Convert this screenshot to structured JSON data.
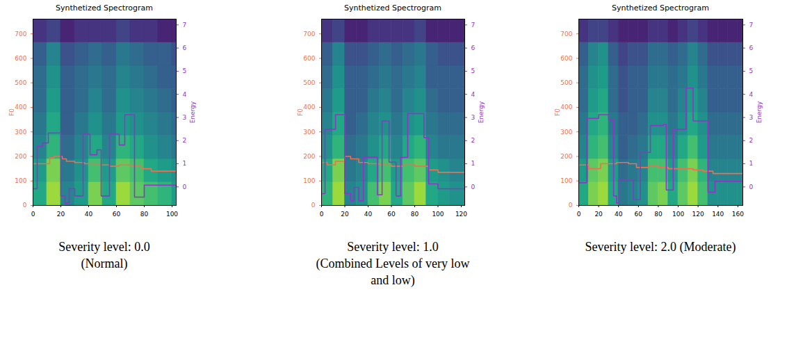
{
  "chart_data": [
    {
      "type": "line",
      "title": "Synthetized Spectrogram",
      "caption": [
        "Severity level: 0.0",
        "(Normal)"
      ],
      "ylabel": "F0",
      "y2label": "Energy",
      "xlim": [
        0,
        103
      ],
      "xticks": [
        0,
        20,
        40,
        60,
        80,
        100
      ],
      "ylim": [
        0,
        760
      ],
      "yticks": [
        0,
        100,
        200,
        300,
        400,
        500,
        600,
        700
      ],
      "y2lim": [
        -0.8,
        7.25
      ],
      "y2ticks": [
        0,
        1,
        2,
        3,
        4,
        5,
        6,
        7
      ],
      "spectrogram": {
        "color": "viridis",
        "value_range": [
          0,
          1
        ],
        "x_edges": [
          0,
          10,
          20,
          30,
          40,
          50,
          60,
          70,
          80,
          90,
          100,
          103
        ],
        "y_edges": [
          0,
          95,
          190,
          285,
          380,
          475,
          570,
          665,
          760
        ],
        "values": [
          [
            0.6,
            0.85,
            0.45,
            0.55,
            0.8,
            0.6,
            0.85,
            0.75,
            0.7,
            0.65,
            0.55
          ],
          [
            0.55,
            0.8,
            0.4,
            0.5,
            0.7,
            0.55,
            0.75,
            0.7,
            0.6,
            0.55,
            0.5
          ],
          [
            0.45,
            0.65,
            0.35,
            0.45,
            0.6,
            0.45,
            0.65,
            0.6,
            0.5,
            0.45,
            0.4
          ],
          [
            0.4,
            0.6,
            0.3,
            0.4,
            0.5,
            0.4,
            0.55,
            0.5,
            0.45,
            0.4,
            0.35
          ],
          [
            0.35,
            0.55,
            0.3,
            0.35,
            0.45,
            0.35,
            0.5,
            0.45,
            0.4,
            0.35,
            0.3
          ],
          [
            0.35,
            0.5,
            0.3,
            0.35,
            0.4,
            0.35,
            0.45,
            0.4,
            0.35,
            0.3,
            0.3
          ],
          [
            0.3,
            0.45,
            0.25,
            0.3,
            0.35,
            0.3,
            0.4,
            0.35,
            0.3,
            0.3,
            0.25
          ],
          [
            0.15,
            0.2,
            0.1,
            0.15,
            0.15,
            0.15,
            0.2,
            0.15,
            0.15,
            0.1,
            0.1
          ]
        ]
      },
      "series": [
        {
          "name": "F0",
          "color": "#ef6f50",
          "line_style": "step",
          "x": [
            0,
            12,
            15,
            21,
            24,
            30,
            37,
            45,
            55,
            62,
            70,
            78,
            85,
            103
          ],
          "values": [
            170,
            195,
            200,
            190,
            180,
            175,
            170,
            165,
            160,
            165,
            160,
            150,
            140,
            140
          ]
        },
        {
          "name": "Energy",
          "color": "#9035c8",
          "line_style": "step",
          "axis": "y2",
          "x": [
            0,
            3,
            7,
            11,
            20,
            23,
            26,
            30,
            36,
            41,
            46,
            49,
            55,
            62,
            66,
            73,
            80,
            103
          ],
          "values": [
            -0.08,
            1.75,
            1.9,
            2.33,
            -0.39,
            -0.7,
            -0.08,
            -0.39,
            2.28,
            1.39,
            1.6,
            -0.39,
            2.28,
            1.81,
            3.12,
            -0.44,
            0.08,
            0.08
          ]
        }
      ]
    },
    {
      "type": "line",
      "title": "Synthetized Spectrogram",
      "caption": [
        "Severity level: 1.0",
        "(Combined Levels of very low",
        "and low)"
      ],
      "ylabel": "F0",
      "y2label": "Energy",
      "xlim": [
        0,
        123
      ],
      "xticks": [
        0,
        20,
        40,
        60,
        80,
        100,
        120
      ],
      "ylim": [
        0,
        760
      ],
      "yticks": [
        0,
        100,
        200,
        300,
        400,
        500,
        600,
        700
      ],
      "y2lim": [
        -0.8,
        7.25
      ],
      "y2ticks": [
        0,
        1,
        2,
        3,
        4,
        5,
        6,
        7
      ],
      "spectrogram": {
        "color": "viridis",
        "value_range": [
          0,
          1
        ],
        "x_edges": [
          0,
          10,
          20,
          30,
          40,
          50,
          60,
          70,
          80,
          90,
          100,
          110,
          120,
          123
        ],
        "y_edges": [
          0,
          95,
          190,
          285,
          380,
          475,
          570,
          665,
          760
        ],
        "values": [
          [
            0.65,
            0.85,
            0.45,
            0.5,
            0.7,
            0.8,
            0.6,
            0.75,
            0.85,
            0.6,
            0.55,
            0.5,
            0.5
          ],
          [
            0.6,
            0.8,
            0.4,
            0.45,
            0.6,
            0.7,
            0.55,
            0.7,
            0.75,
            0.55,
            0.5,
            0.45,
            0.45
          ],
          [
            0.5,
            0.65,
            0.35,
            0.4,
            0.5,
            0.6,
            0.45,
            0.6,
            0.65,
            0.45,
            0.4,
            0.4,
            0.4
          ],
          [
            0.45,
            0.6,
            0.3,
            0.35,
            0.45,
            0.5,
            0.4,
            0.5,
            0.55,
            0.4,
            0.35,
            0.35,
            0.35
          ],
          [
            0.4,
            0.55,
            0.3,
            0.3,
            0.4,
            0.45,
            0.35,
            0.45,
            0.5,
            0.35,
            0.3,
            0.3,
            0.3
          ],
          [
            0.35,
            0.5,
            0.3,
            0.3,
            0.35,
            0.4,
            0.35,
            0.4,
            0.45,
            0.3,
            0.3,
            0.3,
            0.3
          ],
          [
            0.3,
            0.45,
            0.25,
            0.25,
            0.3,
            0.35,
            0.3,
            0.35,
            0.4,
            0.3,
            0.25,
            0.25,
            0.25
          ],
          [
            0.15,
            0.2,
            0.1,
            0.1,
            0.15,
            0.15,
            0.15,
            0.15,
            0.2,
            0.1,
            0.1,
            0.1,
            0.1
          ]
        ]
      },
      "series": [
        {
          "name": "F0",
          "color": "#ef6f50",
          "line_style": "step",
          "x": [
            0,
            5,
            12,
            20,
            25,
            32,
            40,
            50,
            60,
            70,
            80,
            92,
            100,
            123
          ],
          "values": [
            175,
            165,
            180,
            200,
            190,
            175,
            170,
            165,
            160,
            165,
            160,
            145,
            135,
            135
          ]
        },
        {
          "name": "Energy",
          "color": "#9035c8",
          "line_style": "step",
          "axis": "y2",
          "x": [
            0,
            3,
            12,
            20,
            25,
            28,
            32,
            36,
            48,
            52,
            58,
            64,
            68,
            74,
            88,
            92,
            100,
            123
          ],
          "values": [
            -0.29,
            2.49,
            3.12,
            -0.29,
            -0.6,
            -0.02,
            -0.6,
            1.28,
            -0.34,
            2.85,
            1.07,
            -0.39,
            1.28,
            3.17,
            2.12,
            0.13,
            -0.08,
            -0.08
          ]
        }
      ]
    },
    {
      "type": "line",
      "title": "Synthetized Spectrogram",
      "caption": [
        "Severity level: 2.0 (Moderate)"
      ],
      "ylabel": "F0",
      "y2label": "Energy",
      "xlim": [
        0,
        165
      ],
      "xticks": [
        0,
        20,
        40,
        60,
        80,
        100,
        120,
        140,
        160
      ],
      "ylim": [
        0,
        760
      ],
      "yticks": [
        0,
        100,
        200,
        300,
        400,
        500,
        600,
        700
      ],
      "y2lim": [
        -0.8,
        7.25
      ],
      "y2ticks": [
        0,
        1,
        2,
        3,
        4,
        5,
        6,
        7
      ],
      "spectrogram": {
        "color": "viridis",
        "value_range": [
          0,
          1
        ],
        "x_edges": [
          0,
          10,
          20,
          30,
          40,
          50,
          60,
          70,
          80,
          90,
          100,
          110,
          120,
          130,
          140,
          150,
          160,
          165
        ],
        "y_edges": [
          0,
          95,
          190,
          285,
          380,
          475,
          570,
          665,
          760
        ],
        "values": [
          [
            0.6,
            0.8,
            0.85,
            0.6,
            0.4,
            0.45,
            0.5,
            0.75,
            0.8,
            0.6,
            0.75,
            0.85,
            0.7,
            0.5,
            0.5,
            0.5,
            0.5
          ],
          [
            0.55,
            0.75,
            0.8,
            0.55,
            0.35,
            0.4,
            0.45,
            0.7,
            0.7,
            0.55,
            0.7,
            0.8,
            0.65,
            0.45,
            0.45,
            0.45,
            0.45
          ],
          [
            0.45,
            0.65,
            0.7,
            0.45,
            0.3,
            0.35,
            0.4,
            0.6,
            0.6,
            0.45,
            0.6,
            0.7,
            0.55,
            0.4,
            0.4,
            0.4,
            0.4
          ],
          [
            0.4,
            0.6,
            0.65,
            0.4,
            0.3,
            0.3,
            0.35,
            0.5,
            0.5,
            0.4,
            0.5,
            0.6,
            0.5,
            0.35,
            0.35,
            0.35,
            0.35
          ],
          [
            0.35,
            0.55,
            0.6,
            0.35,
            0.25,
            0.3,
            0.3,
            0.45,
            0.45,
            0.35,
            0.45,
            0.55,
            0.45,
            0.3,
            0.3,
            0.3,
            0.3
          ],
          [
            0.35,
            0.5,
            0.55,
            0.35,
            0.25,
            0.3,
            0.3,
            0.4,
            0.4,
            0.35,
            0.4,
            0.5,
            0.4,
            0.3,
            0.3,
            0.3,
            0.3
          ],
          [
            0.3,
            0.45,
            0.5,
            0.3,
            0.2,
            0.25,
            0.25,
            0.35,
            0.35,
            0.3,
            0.35,
            0.45,
            0.35,
            0.25,
            0.25,
            0.25,
            0.25
          ],
          [
            0.15,
            0.2,
            0.2,
            0.15,
            0.1,
            0.1,
            0.1,
            0.15,
            0.15,
            0.1,
            0.15,
            0.2,
            0.15,
            0.1,
            0.1,
            0.1,
            0.1
          ]
        ]
      },
      "series": [
        {
          "name": "F0",
          "color": "#ef6f50",
          "line_style": "step",
          "x": [
            0,
            10,
            22,
            30,
            38,
            50,
            58,
            70,
            80,
            90,
            105,
            115,
            125,
            135,
            165
          ],
          "values": [
            165,
            150,
            170,
            170,
            175,
            170,
            155,
            160,
            155,
            150,
            150,
            145,
            140,
            130,
            130
          ]
        },
        {
          "name": "Energy",
          "color": "#9035c8",
          "line_style": "step",
          "axis": "y2",
          "x": [
            0,
            8,
            20,
            30,
            35,
            38,
            40,
            55,
            62,
            72,
            85,
            88,
            95,
            108,
            115,
            130,
            137,
            165
          ],
          "values": [
            0.18,
            2.96,
            3.12,
            2.91,
            -0.39,
            -0.7,
            0.29,
            -0.55,
            1.49,
            2.65,
            2.7,
            -0.13,
            2.49,
            4.27,
            2.85,
            -0.23,
            0.24,
            0.24
          ]
        }
      ]
    }
  ]
}
